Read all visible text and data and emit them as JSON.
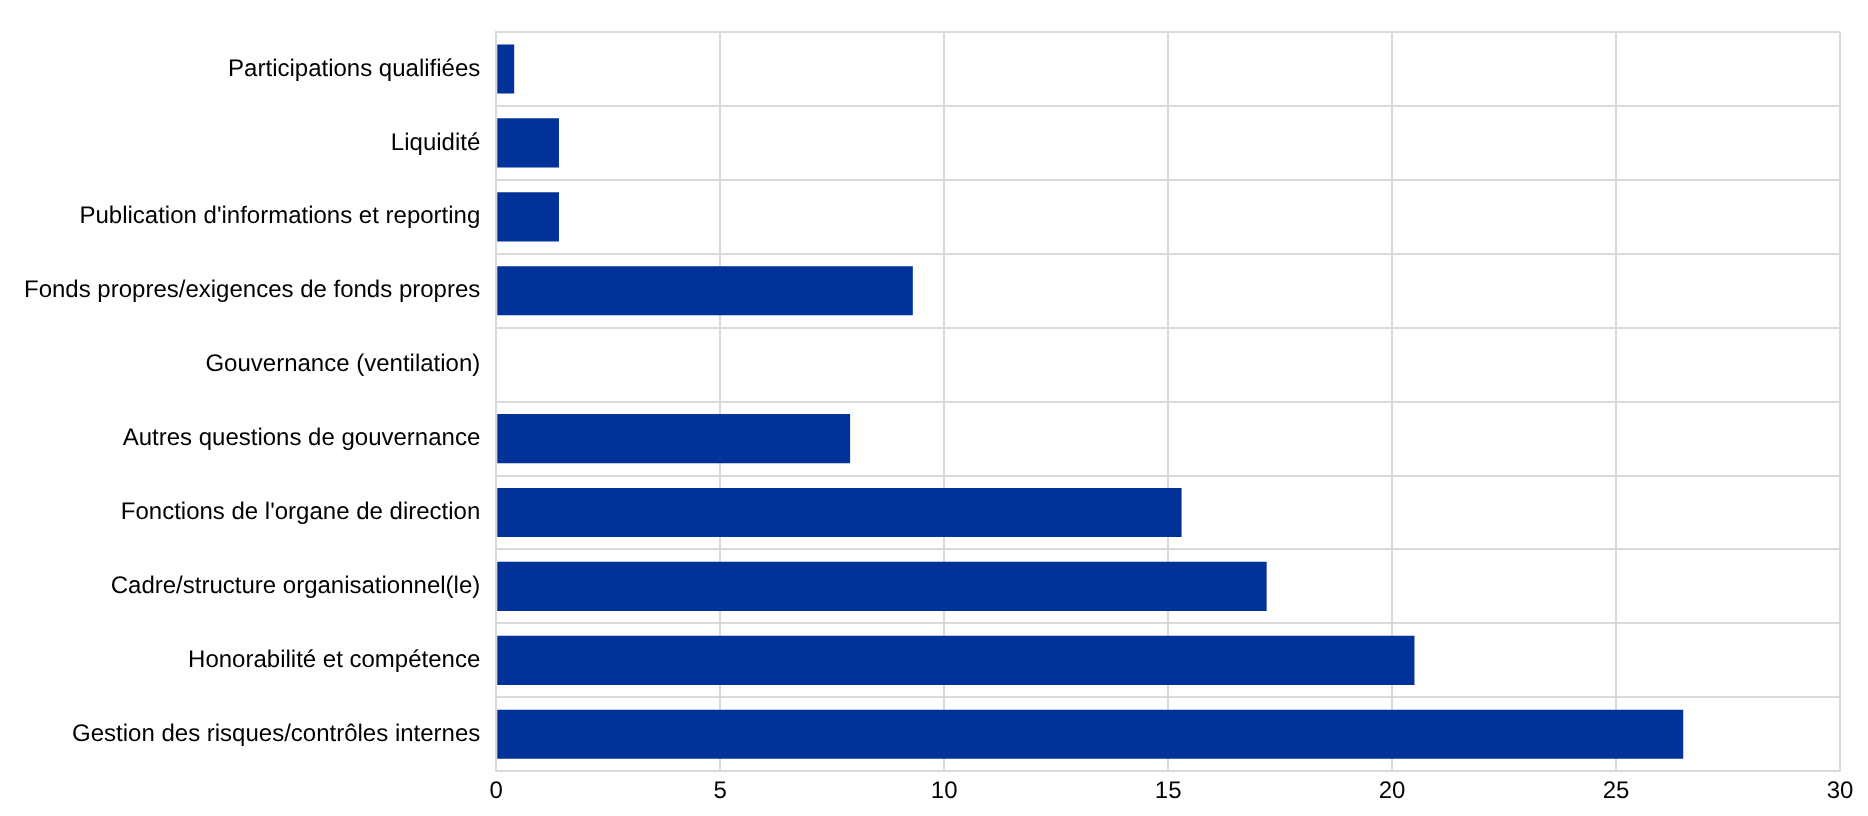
{
  "chart_data": {
    "type": "bar",
    "orientation": "horizontal",
    "categories": [
      "Participations qualifiées",
      "Liquidité",
      "Publication d'informations et reporting",
      "Fonds propres/exigences de fonds propres",
      "Gouvernance (ventilation)",
      "Autres questions de gouvernance",
      "Fonctions de l'organe de direction",
      "Cadre/structure organisationnel(le)",
      "Honorabilité et compétence",
      "Gestion des risques/contrôles internes"
    ],
    "values": [
      0.4,
      1.4,
      1.4,
      9.3,
      null,
      7.9,
      15.3,
      17.2,
      20.5,
      26.5
    ],
    "color": "#003299",
    "xlim": [
      0,
      30
    ],
    "xticks": [
      0,
      5,
      10,
      15,
      20,
      25,
      30
    ],
    "grid": true,
    "legend": false
  }
}
